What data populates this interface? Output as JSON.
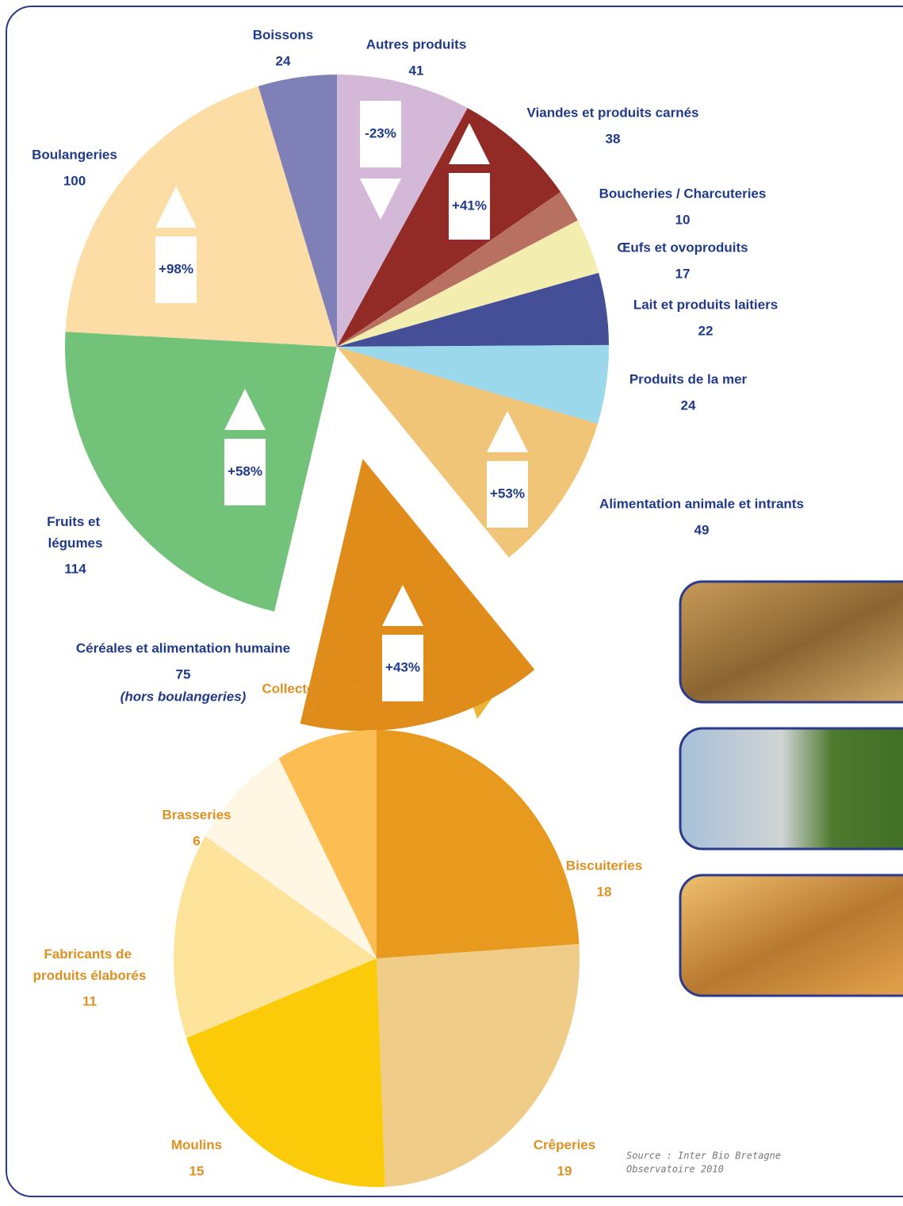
{
  "chart_data": [
    {
      "type": "pie",
      "categories": [
        "Autres produits",
        "Viandes et produits carnés",
        "Boucheries / Charcuteries",
        "Œufs et ovoproduits",
        "Lait et produits laitiers",
        "Produits de la mer",
        "Alimentation animale et intrants",
        "Céréales et alimentation humaine",
        "Fruits et légumes",
        "Boulangeries",
        "Boissons"
      ],
      "values": [
        41,
        38,
        10,
        17,
        22,
        24,
        49,
        75,
        114,
        100,
        24
      ],
      "colors": [
        "#d4b8d8",
        "#922a26",
        "#b87060",
        "#f3eeb0",
        "#444f98",
        "#9bd8ec",
        "#f0c578",
        "#e08c1a",
        "#72c27a",
        "#fddda6",
        "#8080b8"
      ],
      "explode": [
        false,
        false,
        false,
        false,
        false,
        false,
        false,
        true,
        false,
        false,
        false
      ],
      "change_values": [
        -23,
        41,
        null,
        null,
        null,
        null,
        53,
        43,
        58,
        98,
        null
      ],
      "change_labels": [
        "-23%",
        "+41%",
        null,
        null,
        null,
        null,
        "+53%",
        "+43%",
        "+58%",
        "+98%",
        null
      ],
      "note": "(hors boulangeries)"
    },
    {
      "type": "pie",
      "categories": [
        "Biscuiteries",
        "Crêperies",
        "Moulins",
        "Fabricants de produits élaborés",
        "Brasseries",
        "Collecteurs / OS"
      ],
      "values": [
        18,
        19,
        15,
        11,
        6,
        6
      ],
      "colors": [
        "#e79a1e",
        "#efcd88",
        "#fbcb0a",
        "#fde49a",
        "#fff6e4",
        "#fcbe52"
      ]
    }
  ],
  "source_lines": [
    "Source : Inter Bio Bretagne",
    "Observatoire 2010"
  ]
}
